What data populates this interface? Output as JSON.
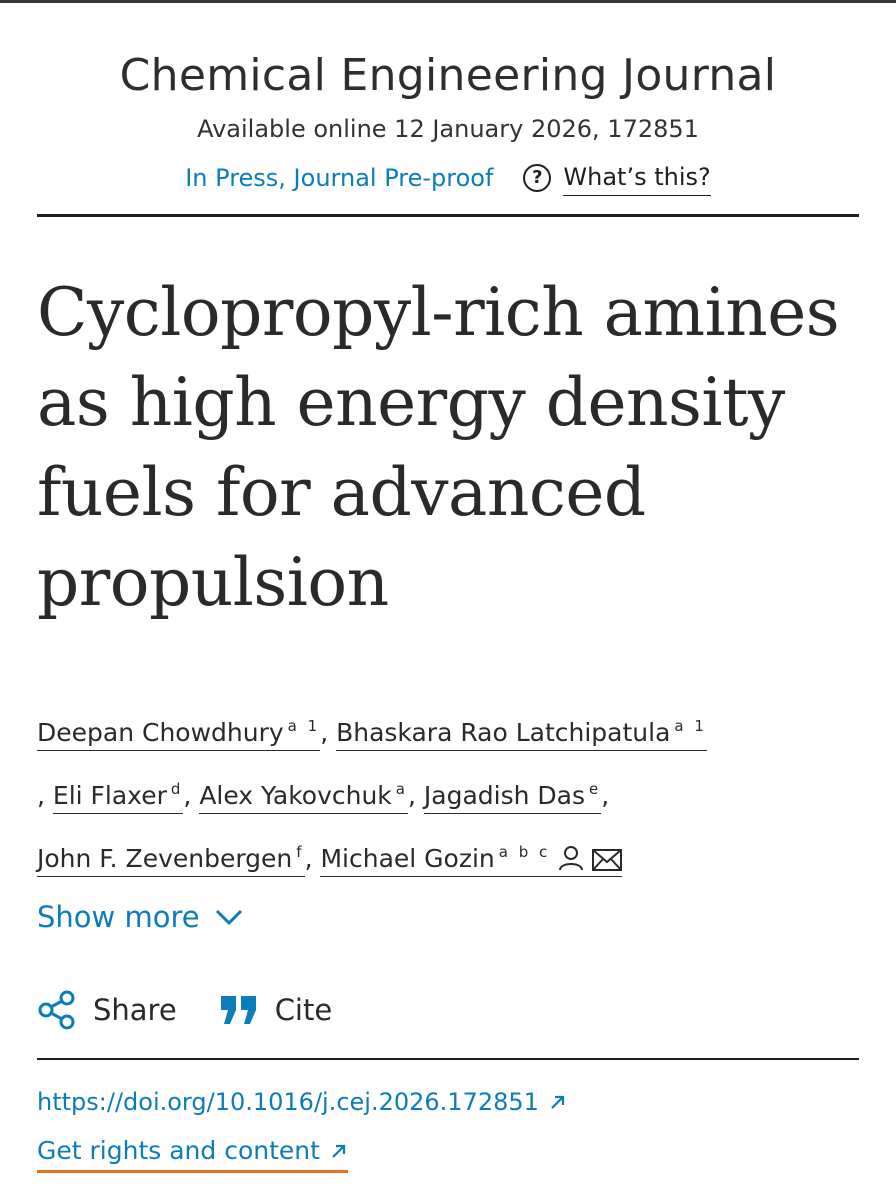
{
  "header": {
    "journal_name": "Chemical Engineering Journal",
    "available_online": "Available online 12 January 2026, 172851",
    "status_link": "In Press, Journal Pre-proof",
    "whats_this": "What’s this?"
  },
  "article": {
    "title": "Cyclopropyl-rich amines as high energy density fuels for advanced propulsion"
  },
  "authors": [
    {
      "name": "Deepan Chowdhury",
      "affil": "a 1"
    },
    {
      "name": "Bhaskara Rao Latchipatula",
      "affil": "a 1"
    },
    {
      "name": "Eli Flaxer",
      "affil": "d"
    },
    {
      "name": "Alex Yakovchuk",
      "affil": "a"
    },
    {
      "name": "Jagadish Das",
      "affil": "e"
    },
    {
      "name": "John F. Zevenbergen",
      "affil": "f"
    },
    {
      "name": "Michael Gozin",
      "affil": "a b c"
    }
  ],
  "show_more": "Show more",
  "actions": {
    "share": "Share",
    "cite": "Cite"
  },
  "links": {
    "doi": "https://doi.org/10.1016/j.cej.2026.172851",
    "rights": "Get rights and content"
  },
  "colors": {
    "link": "#0c7dbb",
    "accent_underline": "#e9711c",
    "text": "#2a2a2a"
  },
  "icons": [
    "help-circle-icon",
    "person-icon",
    "mail-icon",
    "chevron-down-icon",
    "share-icon",
    "quote-icon",
    "external-arrow-icon"
  ]
}
